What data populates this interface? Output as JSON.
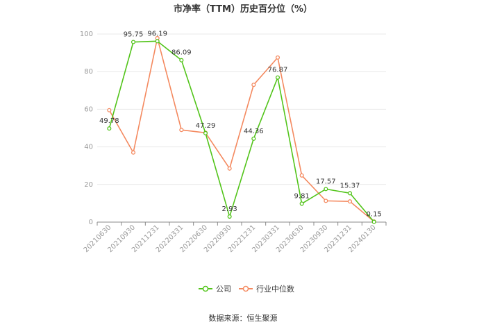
{
  "chart_data": {
    "type": "line",
    "title": "市净率（TTM）历史百分位（%）",
    "categories": [
      "20210630",
      "20210930",
      "20211231",
      "20220331",
      "20220630",
      "20220930",
      "20221231",
      "20230331",
      "20230630",
      "20230930",
      "20231231",
      "20240130"
    ],
    "ylim": [
      0,
      100
    ],
    "yticks": [
      0,
      20,
      40,
      60,
      80,
      100
    ],
    "grid": true,
    "legend_position": "bottom",
    "series": [
      {
        "name": "公司",
        "color": "#52c41a",
        "values": [
          49.78,
          95.75,
          96.19,
          86.09,
          47.29,
          2.93,
          44.36,
          76.87,
          9.81,
          17.57,
          15.37,
          0.15
        ],
        "labels": [
          "49.78",
          "95.75",
          "96.19",
          "86.09",
          "47.29",
          "2.93",
          "44.36",
          "76.87",
          "9.81",
          "17.57",
          "15.37",
          "0.15"
        ]
      },
      {
        "name": "行业中位数",
        "color": "#f4895f",
        "values": [
          59.5,
          37.0,
          97.8,
          49.0,
          47.5,
          28.5,
          73.0,
          87.5,
          24.8,
          11.3,
          11.0,
          0.3
        ]
      }
    ]
  },
  "source_text": "数据来源：恒生聚源"
}
